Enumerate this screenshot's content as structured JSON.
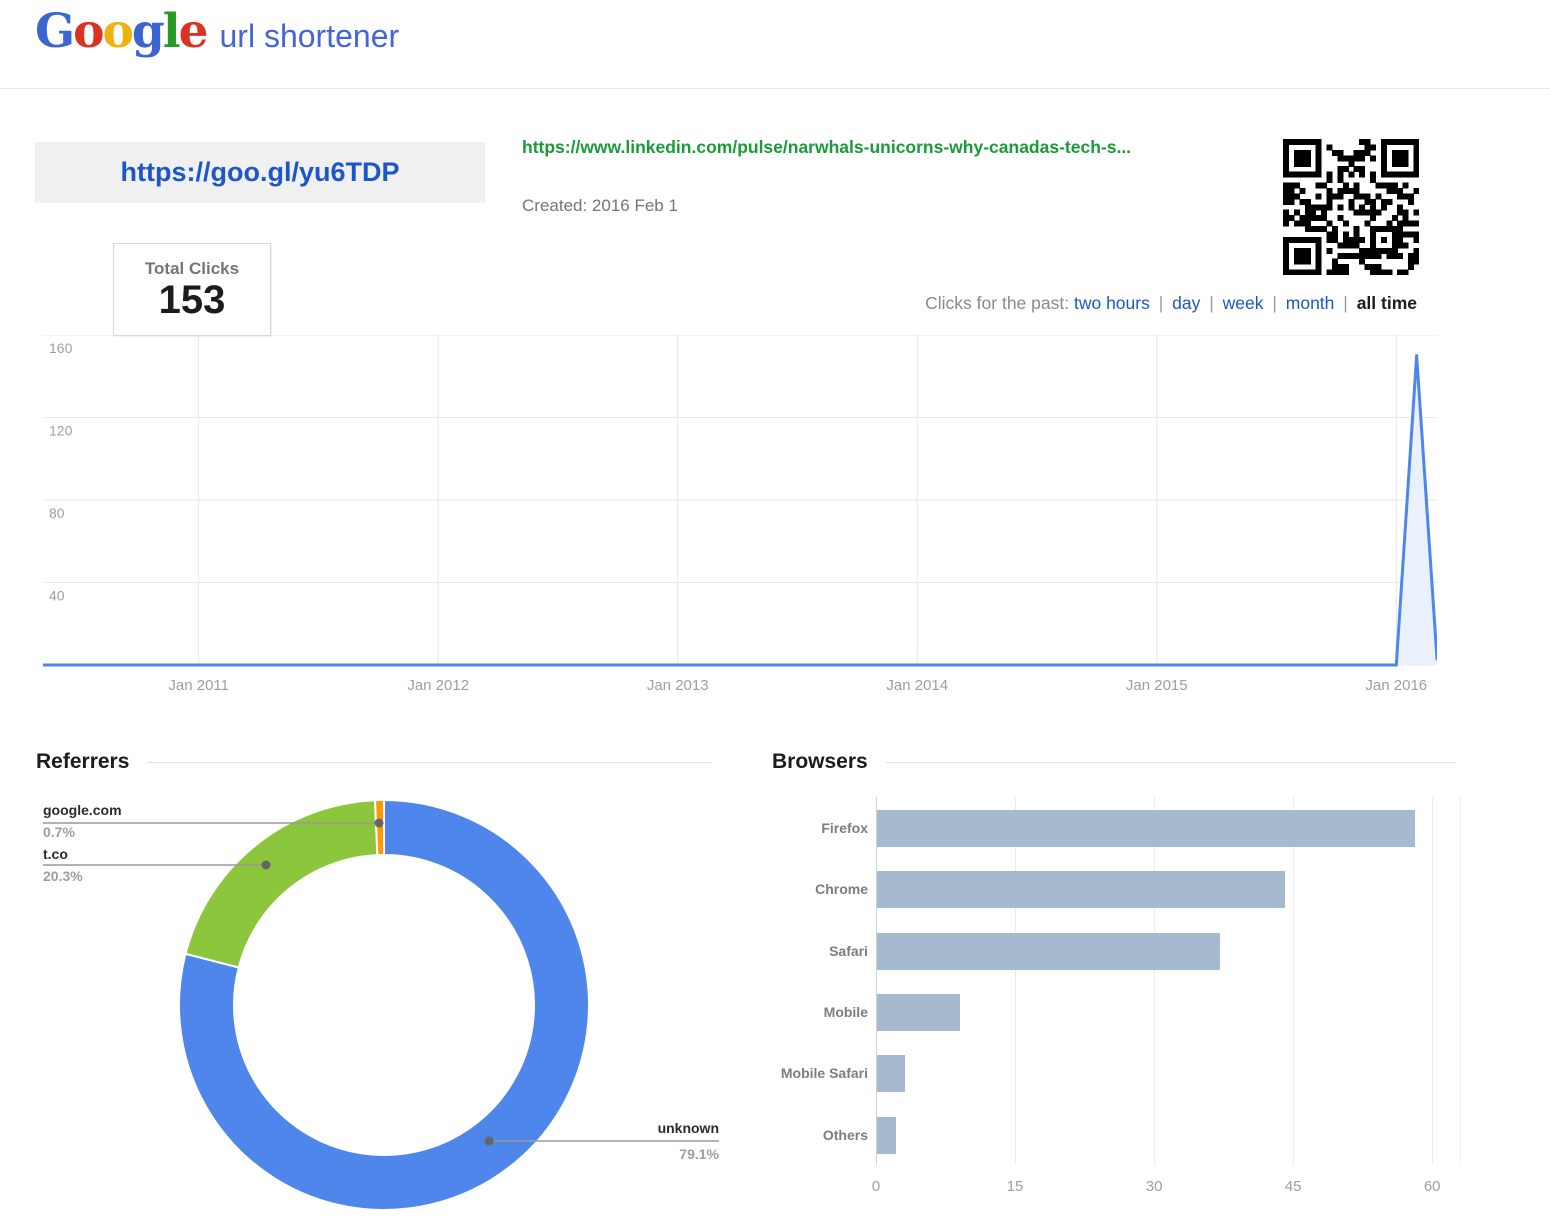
{
  "header": {
    "logo_letters": [
      {
        "ch": "G",
        "color": "#3b66d1"
      },
      {
        "ch": "o",
        "color": "#d93422"
      },
      {
        "ch": "o",
        "color": "#eeb211"
      },
      {
        "ch": "g",
        "color": "#3b66d1"
      },
      {
        "ch": "l",
        "color": "#259a25"
      },
      {
        "ch": "e",
        "color": "#d93422"
      }
    ],
    "product_name": "url shortener"
  },
  "link_details": {
    "short_url": "https://goo.gl/yu6TDP",
    "long_url": "https://www.linkedin.com/pulse/narwhals-unicorns-why-canadas-tech-s...",
    "created": "Created: 2016 Feb 1"
  },
  "total_clicks": {
    "label": "Total Clicks",
    "value": "153"
  },
  "period_filter": {
    "prefix": "Clicks for the past:",
    "separator": "|",
    "options": [
      {
        "label": "two hours",
        "active": false
      },
      {
        "label": "day",
        "active": false
      },
      {
        "label": "week",
        "active": false
      },
      {
        "label": "month",
        "active": false
      },
      {
        "label": "all time",
        "active": true
      }
    ]
  },
  "sections": {
    "referrers": "Referrers",
    "browsers": "Browsers"
  },
  "colors": {
    "link_blue": "#1d56c8",
    "url_green": "#1b9b38",
    "text_gray": "#757575",
    "timeline_line": "#4d86ec",
    "timeline_fill": "#eaf1fd",
    "bar_fill": "#a5bacf",
    "pie_unknown": "#4e86ec",
    "pie_tco": "#8cc63c",
    "pie_google": "#ff9900"
  },
  "chart_data": [
    {
      "name": "clicks-timeline",
      "type": "area",
      "title": "Clicks for the past: all time",
      "x_domain": [
        2010.35,
        2016.17
      ],
      "x_ticks": [
        {
          "label": "Jan 2011",
          "value": 2011
        },
        {
          "label": "Jan 2012",
          "value": 2012
        },
        {
          "label": "Jan 2013",
          "value": 2013
        },
        {
          "label": "Jan 2014",
          "value": 2014
        },
        {
          "label": "Jan 2015",
          "value": 2015
        },
        {
          "label": "Jan 2016",
          "value": 2016
        }
      ],
      "ylim": [
        0,
        160
      ],
      "y_ticks": [
        40,
        80,
        120,
        160
      ],
      "grid": true,
      "line_color": "#4d86ec",
      "fill_color": "#eaf1fd",
      "series": [
        {
          "name": "clicks",
          "points": [
            [
              2010.35,
              0
            ],
            [
              2016.0,
              0
            ],
            [
              2016.085,
              150
            ],
            [
              2016.17,
              3
            ]
          ]
        }
      ],
      "note": "flat at 0 from mid-2010 until Jan 2016, spike of ~150 clicks just after Jan 2016, falling back to ~3"
    },
    {
      "name": "referrers-donut",
      "type": "pie",
      "donut": true,
      "slices": [
        {
          "label": "unknown",
          "pct": 79.1,
          "pct_label": "79.1%",
          "color": "#4e86ec"
        },
        {
          "label": "t.co",
          "pct": 20.3,
          "pct_label": "20.3%",
          "color": "#8cc63c"
        },
        {
          "label": "google.com",
          "pct": 0.7,
          "pct_label": "0.7%",
          "color": "#ff9900"
        }
      ]
    },
    {
      "name": "browsers-bars",
      "type": "bar",
      "orientation": "horizontal",
      "categories": [
        "Firefox",
        "Chrome",
        "Safari",
        "Mobile",
        "Mobile Safari",
        "Others"
      ],
      "values": [
        58,
        44,
        37,
        9,
        3,
        2
      ],
      "xlim": [
        0,
        63
      ],
      "x_ticks": [
        0,
        15,
        30,
        45,
        60
      ],
      "bar_color": "#a5bacf",
      "grid": true,
      "legend": "none"
    }
  ]
}
